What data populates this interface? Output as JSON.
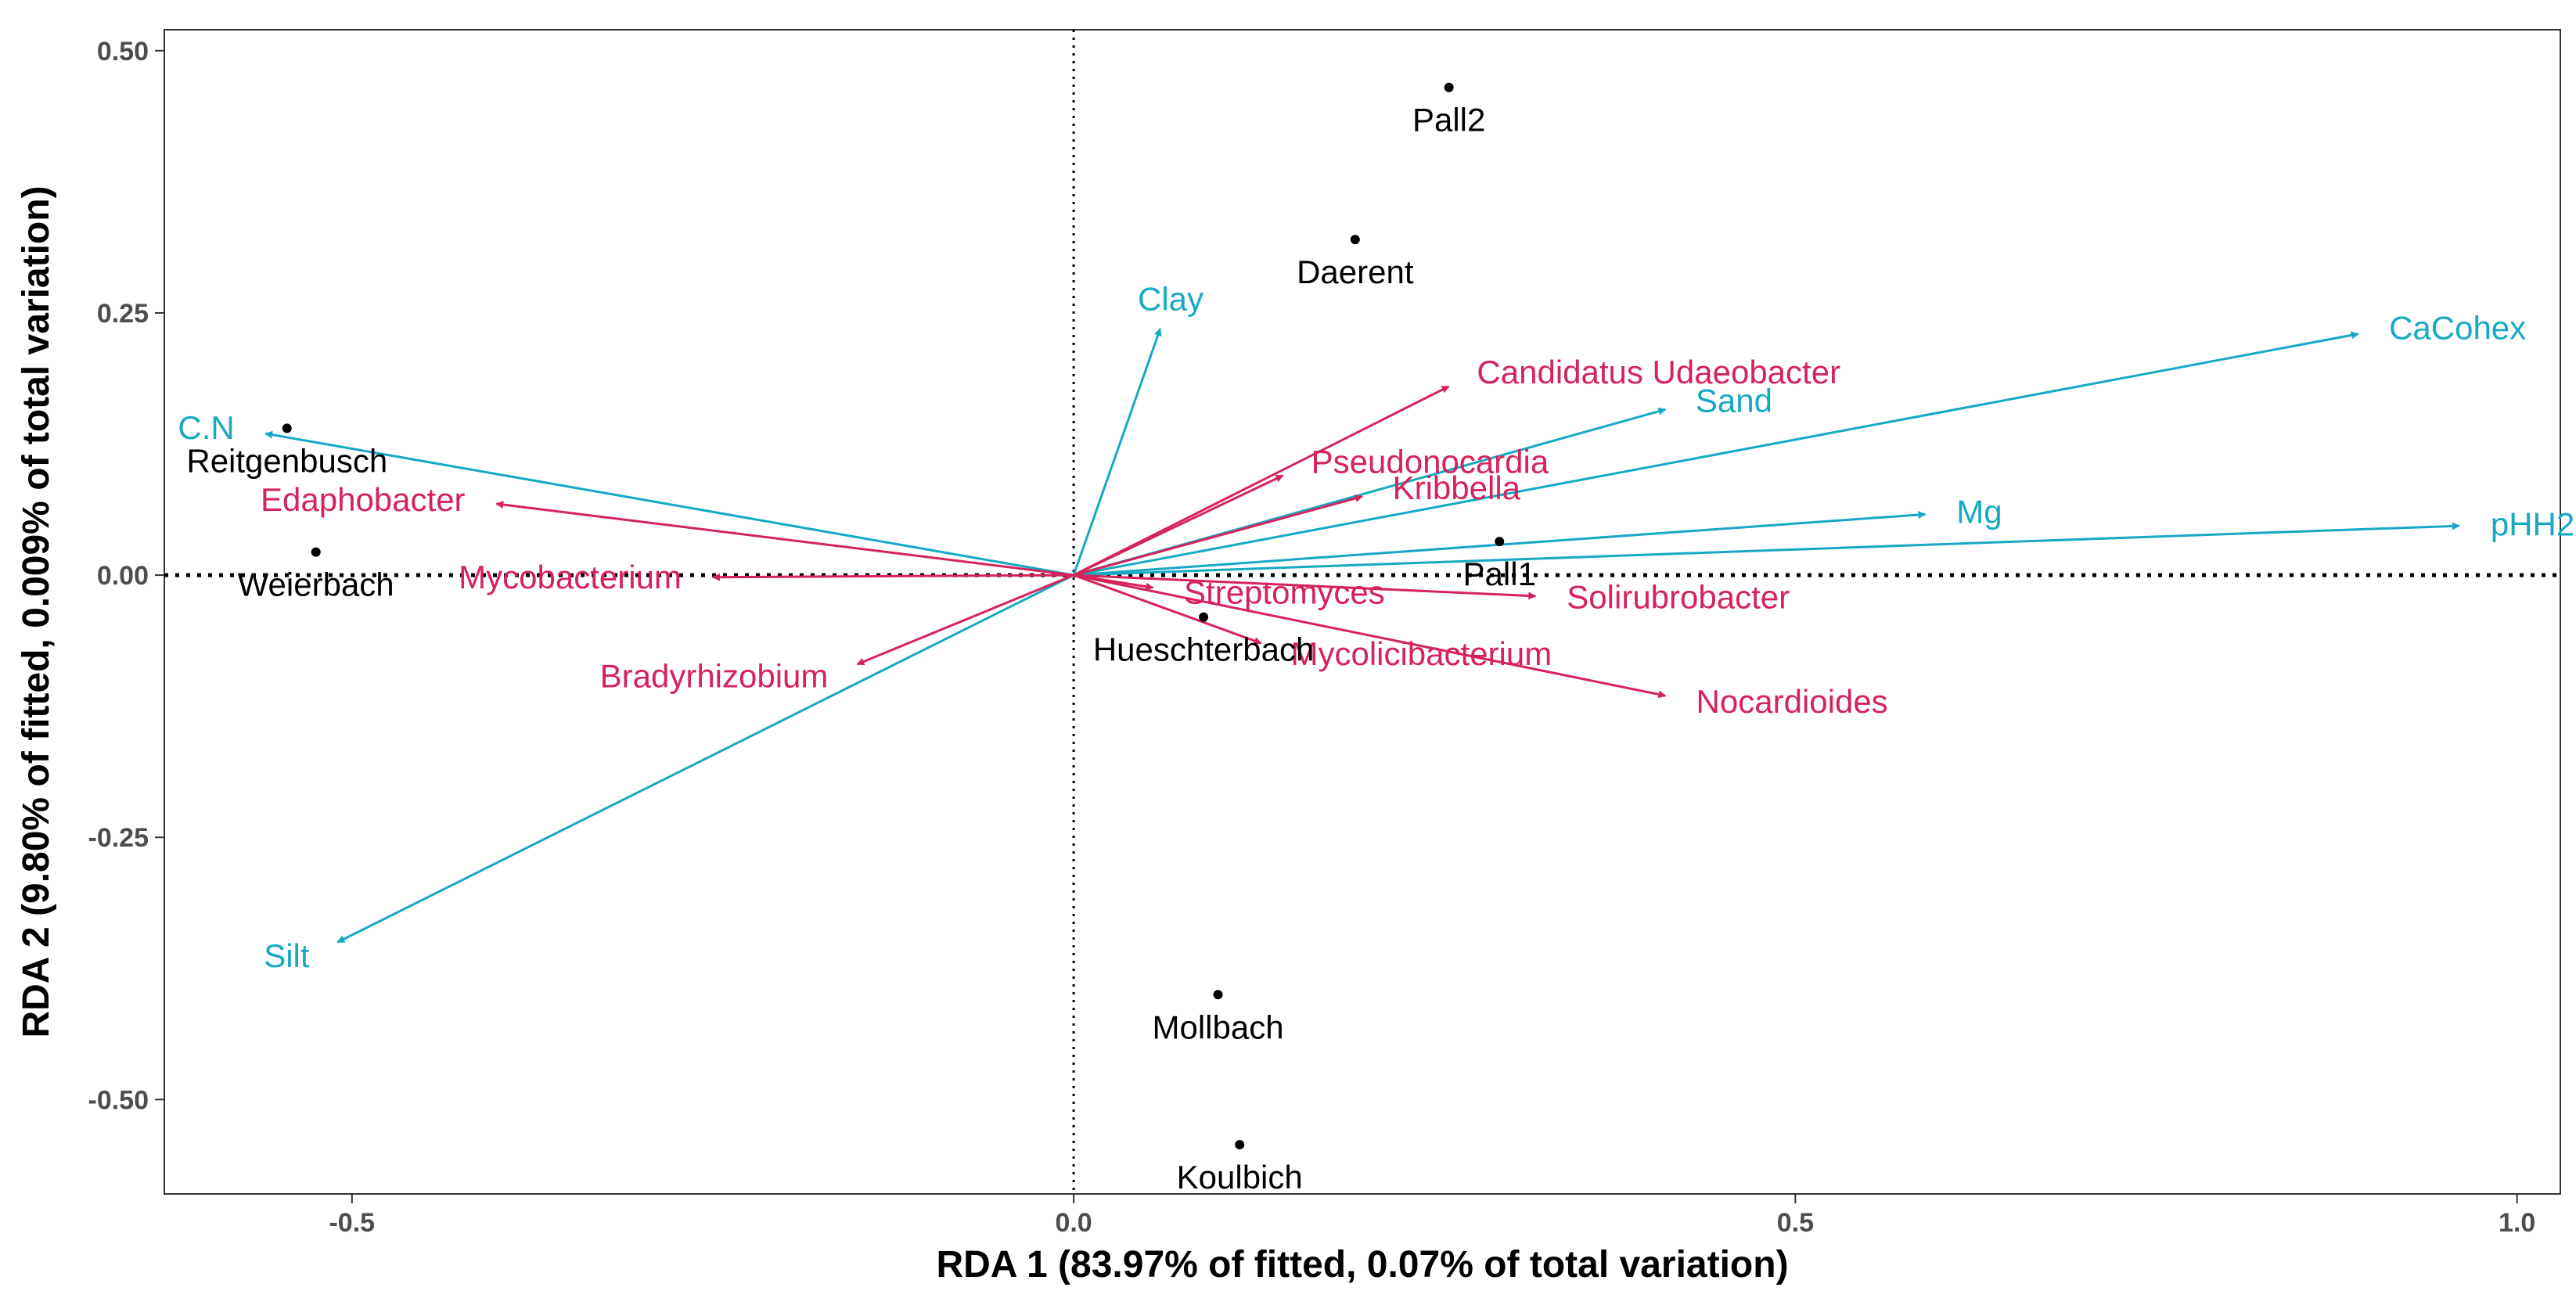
{
  "chart_data": {
    "type": "scatter",
    "subtype": "rda-biplot",
    "xlabel": "RDA 1 (83.97% of fitted, 0.07% of total variation)",
    "ylabel": "RDA 2 (9.80% of fitted, 0.009% of total variation)",
    "xlim": [
      -0.63,
      1.03
    ],
    "ylim": [
      -0.59,
      0.52
    ],
    "x_ticks": [
      -0.5,
      0.0,
      0.5,
      1.0
    ],
    "x_tick_labels": [
      "-0.5",
      "0.0",
      "0.5",
      "1.0"
    ],
    "y_ticks": [
      -0.5,
      -0.25,
      0.0,
      0.25,
      0.5
    ],
    "y_tick_labels": [
      "-0.50",
      "-0.25",
      "0.00",
      "0.25",
      "0.50"
    ],
    "grid": false,
    "reference_lines": {
      "x": 0,
      "y": 0
    },
    "colors": {
      "environment": "#17a9c4",
      "taxa": "#d6235a",
      "sites": "#000000"
    },
    "sites": [
      {
        "name": "Pall2",
        "x": 0.26,
        "y": 0.465
      },
      {
        "name": "Daerent",
        "x": 0.195,
        "y": 0.32
      },
      {
        "name": "Reitgenbusch",
        "x": -0.545,
        "y": 0.14
      },
      {
        "name": "Weierbach",
        "x": -0.525,
        "y": 0.022
      },
      {
        "name": "Pall1",
        "x": 0.295,
        "y": 0.032
      },
      {
        "name": "Hueschterbach",
        "x": 0.09,
        "y": -0.04
      },
      {
        "name": "Mollbach",
        "x": 0.1,
        "y": -0.4
      },
      {
        "name": "Koulbich",
        "x": 0.115,
        "y": -0.543
      }
    ],
    "environment_vectors": [
      {
        "name": "CaCohex",
        "x": 0.89,
        "y": 0.23
      },
      {
        "name": "pHH2O",
        "x": 0.96,
        "y": 0.047
      },
      {
        "name": "Mg",
        "x": 0.59,
        "y": 0.058
      },
      {
        "name": "Sand",
        "x": 0.41,
        "y": 0.158
      },
      {
        "name": "Clay",
        "x": 0.06,
        "y": 0.235
      },
      {
        "name": "C.N",
        "x": -0.56,
        "y": 0.135
      },
      {
        "name": "Silt",
        "x": -0.51,
        "y": -0.35
      }
    ],
    "taxa_vectors": [
      {
        "name": "Candidatus Udaeobacter",
        "x": 0.26,
        "y": 0.18
      },
      {
        "name": "Pseudonocardia",
        "x": 0.145,
        "y": 0.095
      },
      {
        "name": "Kribbella",
        "x": 0.2,
        "y": 0.075
      },
      {
        "name": "Solirubrobacter",
        "x": 0.32,
        "y": -0.02
      },
      {
        "name": "Nocardioides",
        "x": 0.41,
        "y": -0.115
      },
      {
        "name": "Mycolicibacterium",
        "x": 0.13,
        "y": -0.065
      },
      {
        "name": "Streptomyces",
        "x": 0.055,
        "y": -0.012
      },
      {
        "name": "Edaphobacter",
        "x": -0.4,
        "y": 0.068
      },
      {
        "name": "Mycobacterium",
        "x": -0.25,
        "y": -0.002
      },
      {
        "name": "Bradyrhizobium",
        "x": -0.15,
        "y": -0.085
      }
    ]
  }
}
